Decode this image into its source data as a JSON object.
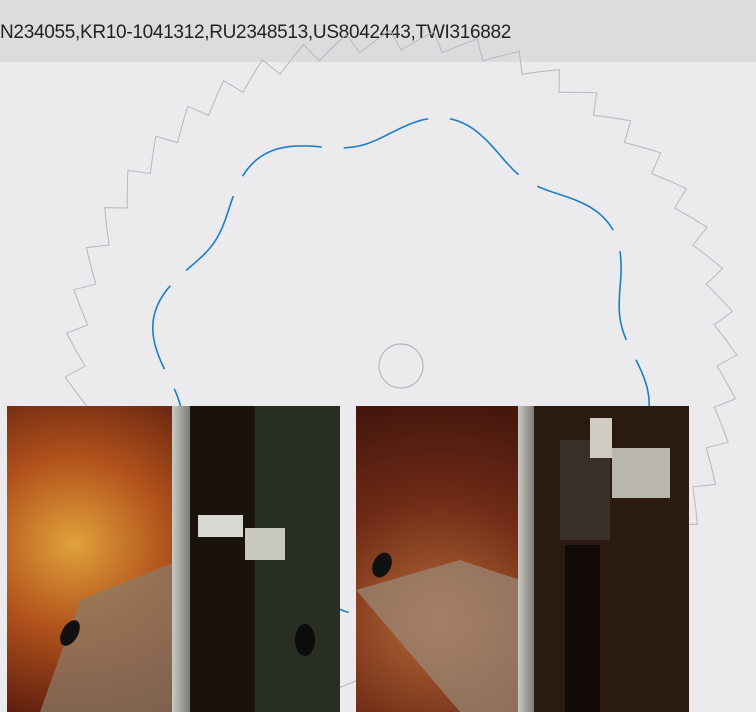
{
  "header": {
    "text": "N234055,KR10-1041312,RU2348513,US8042443,TWI316882"
  }
}
